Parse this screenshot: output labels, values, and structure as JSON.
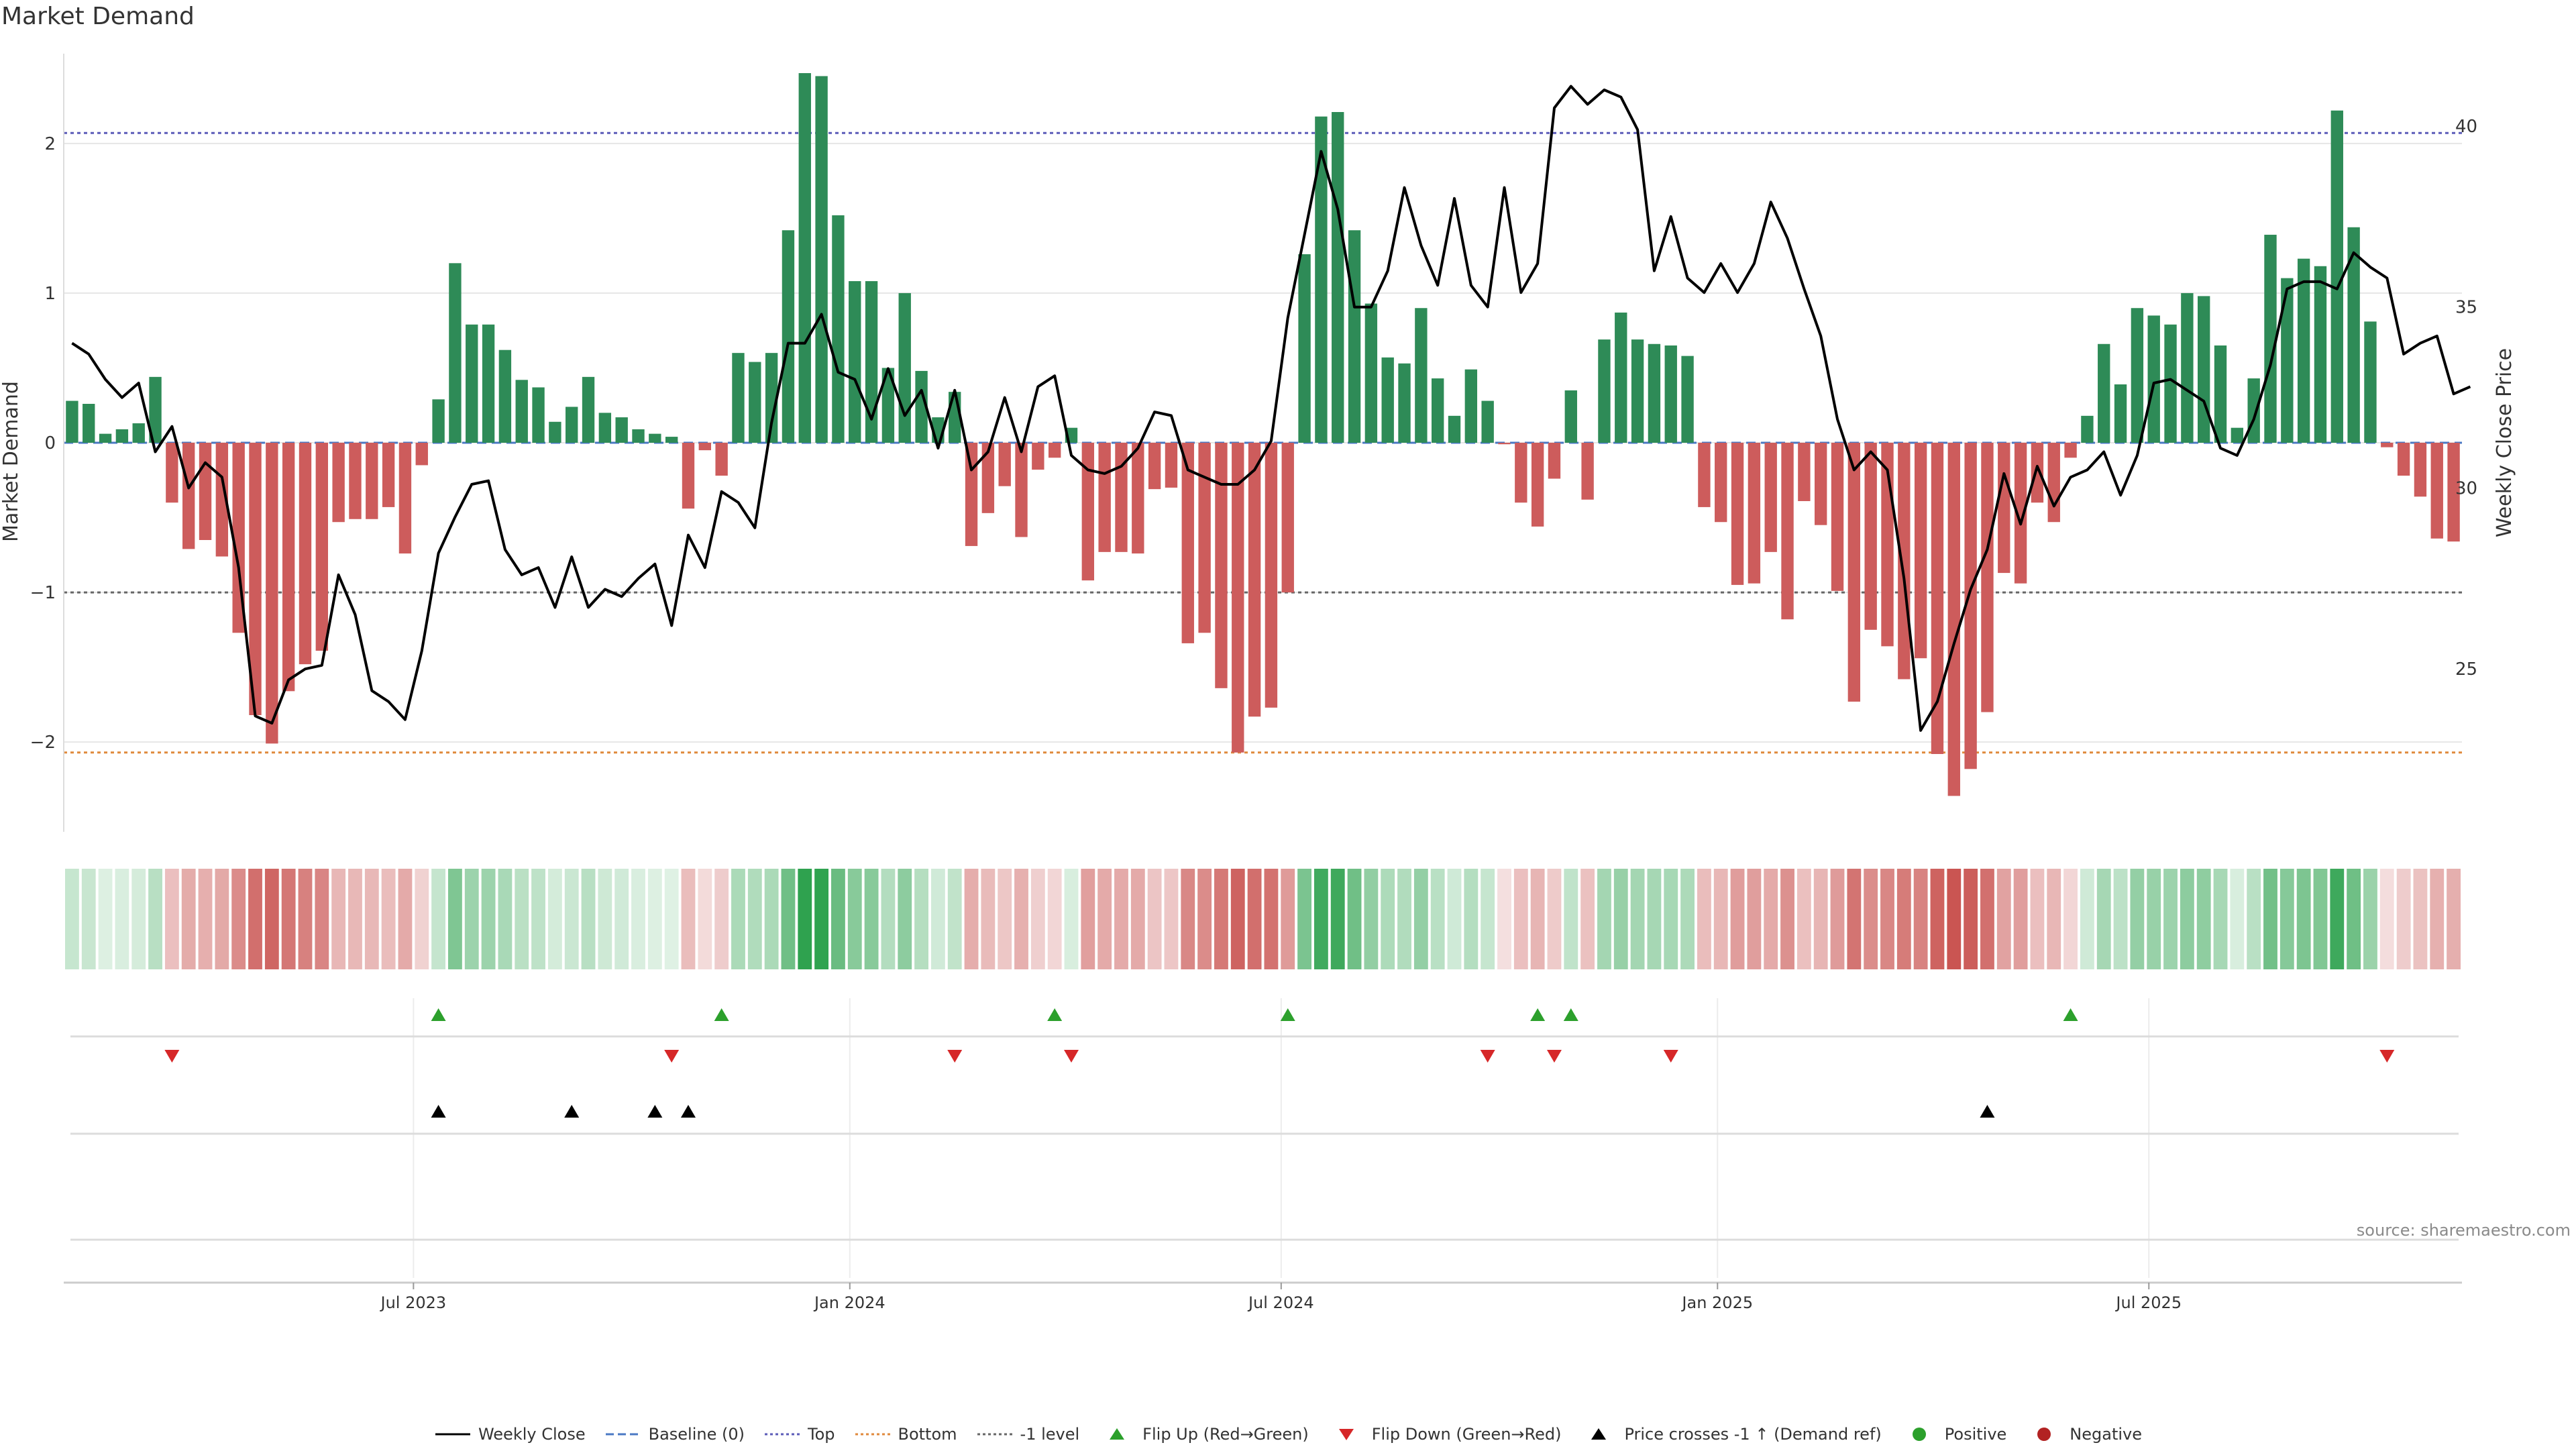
{
  "chart_data": {
    "type": "bar",
    "title": "Market Demand",
    "ylabel_left": "Market Demand",
    "ylabel_right": "Weekly Close Price",
    "source": "source: sharemaestro.com",
    "ylim_left": [
      -2.6,
      2.6
    ],
    "ylim_right": [
      20.5,
      42.0
    ],
    "y_ticks_left": [
      -2,
      -1,
      0,
      1,
      2
    ],
    "y_tick_labels_left": [
      "−2",
      "−1",
      "0",
      "1",
      "2"
    ],
    "y_ticks_right": [
      25,
      30,
      35,
      40
    ],
    "y_tick_labels_right": [
      "25",
      "30",
      "35",
      "40"
    ],
    "x_ticks": [
      {
        "index": 20.5,
        "label": "Jul 2023"
      },
      {
        "index": 46.7,
        "label": "Jan 2024"
      },
      {
        "index": 72.6,
        "label": "Jul 2024"
      },
      {
        "index": 98.8,
        "label": "Jan 2025"
      },
      {
        "index": 124.7,
        "label": "Jul 2025"
      }
    ],
    "reference_lines": [
      {
        "name": "Top",
        "value": 2.07,
        "color": "#5b5bb8"
      },
      {
        "name": "Bottom",
        "value": -2.07,
        "color": "#e08a3c"
      },
      {
        "name": "-1 level",
        "value": -1.0,
        "color": "#666666"
      }
    ],
    "series": [
      {
        "name": "Market Demand",
        "axis": "left",
        "type": "bar",
        "values": [
          0.28,
          0.26,
          0.06,
          0.09,
          0.13,
          0.44,
          -0.4,
          -0.71,
          -0.65,
          -0.76,
          -1.27,
          -1.82,
          -2.01,
          -1.66,
          -1.48,
          -1.39,
          -0.53,
          -0.51,
          -0.51,
          -0.43,
          -0.74,
          -0.15,
          0.29,
          1.2,
          0.79,
          0.79,
          0.62,
          0.42,
          0.37,
          0.14,
          0.24,
          0.44,
          0.2,
          0.17,
          0.09,
          0.06,
          0.04,
          -0.44,
          -0.05,
          -0.22,
          0.6,
          0.54,
          0.6,
          1.42,
          2.47,
          2.45,
          1.52,
          1.08,
          1.08,
          0.5,
          1.0,
          0.48,
          0.17,
          0.34,
          -0.69,
          -0.47,
          -0.29,
          -0.63,
          -0.18,
          -0.1,
          0.1,
          -0.92,
          -0.73,
          -0.73,
          -0.74,
          -0.31,
          -0.3,
          -1.34,
          -1.27,
          -1.64,
          -2.07,
          -1.83,
          -1.77,
          -1.0,
          1.26,
          2.18,
          2.21,
          1.42,
          0.93,
          0.57,
          0.53,
          0.9,
          0.43,
          0.18,
          0.49,
          0.28,
          -0.01,
          -0.4,
          -0.56,
          -0.24,
          0.35,
          -0.38,
          0.69,
          0.87,
          0.69,
          0.66,
          0.65,
          0.58,
          -0.43,
          -0.53,
          -0.95,
          -0.94,
          -0.73,
          -1.18,
          -0.39,
          -0.55,
          -0.99,
          -1.73,
          -1.25,
          -1.36,
          -1.58,
          -1.44,
          -2.08,
          -2.36,
          -2.18,
          -1.8,
          -0.87,
          -0.94,
          -0.4,
          -0.53,
          -0.1,
          0.18,
          0.66,
          0.39,
          0.9,
          0.85,
          0.79,
          1.0,
          0.98,
          0.65,
          0.1,
          0.43,
          1.39,
          1.1,
          1.23,
          1.18,
          2.22,
          1.44,
          0.81,
          -0.03,
          -0.22,
          -0.36,
          -0.64,
          -0.66
        ]
      },
      {
        "name": "Weekly Close",
        "axis": "right",
        "type": "line",
        "values": [
          34.0,
          33.7,
          33.0,
          32.5,
          32.9,
          31.0,
          31.7,
          30.0,
          30.7,
          30.3,
          27.8,
          23.7,
          23.5,
          24.7,
          25.0,
          25.1,
          27.6,
          26.5,
          24.4,
          24.1,
          23.6,
          25.5,
          28.2,
          29.2,
          30.1,
          30.2,
          28.3,
          27.6,
          27.8,
          26.7,
          28.1,
          26.7,
          27.2,
          27.0,
          27.5,
          27.9,
          26.2,
          28.7,
          27.8,
          29.9,
          29.6,
          28.9,
          31.8,
          34.0,
          34.0,
          34.8,
          33.2,
          33.0,
          31.9,
          33.3,
          32.0,
          32.7,
          31.1,
          32.7,
          30.5,
          31.0,
          32.5,
          31.0,
          32.8,
          33.1,
          30.9,
          30.5,
          30.4,
          30.6,
          31.1,
          32.1,
          32.0,
          30.5,
          30.3,
          30.1,
          30.1,
          30.5,
          31.3,
          34.7,
          37.0,
          39.3,
          37.7,
          35.0,
          35.0,
          36.0,
          38.3,
          36.7,
          35.6,
          38.0,
          35.6,
          35.0,
          38.3,
          35.4,
          36.2,
          40.5,
          41.1,
          40.6,
          41.0,
          40.8,
          39.9,
          36.0,
          37.5,
          35.8,
          35.4,
          36.2,
          35.4,
          36.2,
          37.9,
          36.9,
          35.5,
          34.2,
          31.9,
          30.5,
          31.0,
          30.5,
          27.5,
          23.3,
          24.1,
          25.7,
          27.2,
          28.3,
          30.4,
          29.0,
          30.6,
          29.5,
          30.3,
          30.5,
          31.0,
          29.8,
          30.9,
          32.9,
          33.0,
          32.7,
          32.4,
          31.1,
          30.9,
          31.9,
          33.4,
          35.5,
          35.7,
          35.7,
          35.5,
          36.5,
          36.1,
          35.8,
          33.7,
          34.0,
          34.2,
          32.6,
          32.8
        ]
      }
    ],
    "signals": {
      "flip_up_indices": [
        22,
        39,
        59,
        73,
        88,
        90,
        120
      ],
      "flip_down_indices": [
        6,
        36,
        53,
        60,
        85,
        89,
        96,
        139
      ],
      "price_cross_indices": [
        22,
        30,
        35,
        37,
        115
      ]
    },
    "legend": [
      {
        "key": "line-solid",
        "label": "Weekly Close",
        "color": "#000000"
      },
      {
        "key": "line-dash",
        "label": "Baseline (0)",
        "color": "#4a78c4"
      },
      {
        "key": "line-dot",
        "label": "Top",
        "color": "#5b5bb8"
      },
      {
        "key": "line-dot",
        "label": "Bottom",
        "color": "#e08a3c"
      },
      {
        "key": "line-dot",
        "label": "-1 level",
        "color": "#666666"
      },
      {
        "key": "tri-up",
        "label": "Flip Up (Red→Green)",
        "color": "#2ca02c"
      },
      {
        "key": "tri-down",
        "label": "Flip Down (Green→Red)",
        "color": "#d62728"
      },
      {
        "key": "tri-up",
        "label": "Price crosses -1 ↑ (Demand ref)",
        "color": "#000000"
      },
      {
        "key": "dot",
        "label": "Positive",
        "color": "#2ca02c"
      },
      {
        "key": "dot",
        "label": "Negative",
        "color": "#b22222"
      }
    ],
    "colors": {
      "positive_bar": "#2e8b57",
      "negative_bar": "#cd5c5c",
      "close_line": "#000000"
    }
  }
}
